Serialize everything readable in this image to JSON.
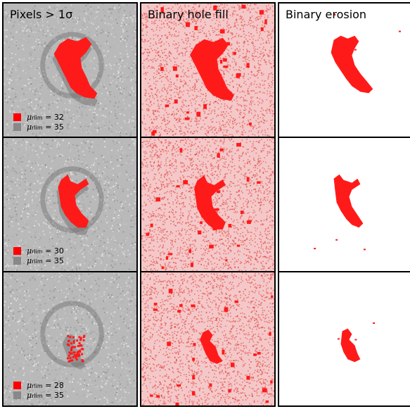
{
  "column_titles": [
    "Pixels > 1σ",
    "Binary hole fill",
    "Binary erosion"
  ],
  "legend_symbol": "μ",
  "legend_sup": "lim",
  "legend_sub": "r",
  "rows": [
    {
      "legend": [
        {
          "value": "32",
          "color": "#ff0000"
        },
        {
          "value": "35",
          "color": "#888888"
        }
      ]
    },
    {
      "legend": [
        {
          "value": "30",
          "color": "#ff0000"
        },
        {
          "value": "35",
          "color": "#888888"
        }
      ]
    },
    {
      "legend": [
        {
          "value": "28",
          "color": "#ff0000"
        },
        {
          "value": "35",
          "color": "#888888"
        }
      ]
    }
  ],
  "colors": {
    "mask": "#ff1a1a",
    "noise_bg": "#b9b9b9",
    "fill_bg": "#f4c8c8"
  }
}
